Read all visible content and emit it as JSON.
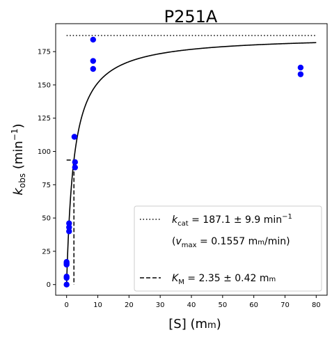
{
  "chart_data": {
    "type": "scatter",
    "title": "P251A",
    "xlabel": {
      "main": "[S] (m",
      "unit_sc": "m",
      "close": ")"
    },
    "ylabel": {
      "k": "k",
      "sub": "obs",
      "unit": " (min",
      "sup": "−1",
      "close": ")"
    },
    "xlim": [
      -3.5,
      83.5
    ],
    "ylim": [
      -8,
      196
    ],
    "xticks": [
      0,
      10,
      20,
      30,
      40,
      50,
      60,
      70,
      80
    ],
    "yticks": [
      0,
      25,
      50,
      75,
      100,
      125,
      150,
      175
    ],
    "grid": false,
    "legend_position": "lower right",
    "series": [
      {
        "kind": "points",
        "color": "#0000ff",
        "x": [
          0,
          0,
          0,
          0,
          0,
          0,
          0.8,
          0.8,
          0.8,
          2.5,
          2.7,
          2.7,
          8.5,
          8.5,
          8.5,
          75,
          75
        ],
        "y": [
          0,
          5,
          6,
          15,
          16,
          17,
          40,
          43,
          46,
          111,
          88,
          92,
          162,
          168,
          184,
          158,
          163
        ]
      },
      {
        "kind": "fit",
        "model": "michaelis-menten",
        "kcat": 187.1,
        "km": 2.35,
        "x_range": [
          0,
          80
        ],
        "color": "#000000"
      },
      {
        "kind": "kcat-line",
        "style": "dotted",
        "y": 187.1,
        "x_range": [
          0,
          80
        ],
        "color": "#000000"
      },
      {
        "kind": "km-marker",
        "style": "dashed",
        "x": 2.35,
        "y": 93.55,
        "x_start": 0,
        "color": "#000000"
      }
    ],
    "legend": {
      "kcat": {
        "k": "k",
        "sub": "cat",
        "text": " = 187.1 ± 9.9 min",
        "sup": "−1"
      },
      "vmax": {
        "open": "(",
        "v": "v",
        "sub": "max",
        "text": " = 0.1557 m",
        "unit_sc": "m",
        "close": "/min)"
      },
      "km": {
        "k": "K",
        "sub": "M",
        "text": " = 2.35 ± 0.42 m",
        "unit_sc": "m"
      }
    }
  }
}
